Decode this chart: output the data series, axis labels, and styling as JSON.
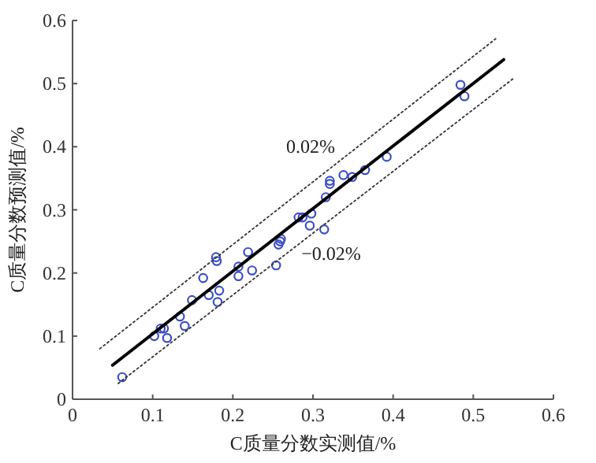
{
  "chart_data": {
    "type": "scatter",
    "xlabel": "C质量分数实测值/%",
    "ylabel": "C质量分数预测值/%",
    "xlim": [
      0,
      0.6
    ],
    "ylim": [
      0,
      0.6
    ],
    "xticks": [
      0,
      0.1,
      0.2,
      0.3,
      0.4,
      0.5,
      0.6
    ],
    "yticks": [
      0,
      0.1,
      0.2,
      0.3,
      0.4,
      0.5,
      0.6
    ],
    "grid": false,
    "series": [
      {
        "type": "scatter",
        "color": "#3c4fc4",
        "marker": "circle",
        "x": [
          0.062,
          0.102,
          0.11,
          0.114,
          0.118,
          0.134,
          0.14,
          0.149,
          0.163,
          0.17,
          0.179,
          0.18,
          0.183,
          0.181,
          0.207,
          0.207,
          0.219,
          0.224,
          0.254,
          0.257,
          0.259,
          0.26,
          0.282,
          0.287,
          0.296,
          0.298,
          0.314,
          0.316,
          0.321,
          0.321,
          0.338,
          0.349,
          0.365,
          0.392,
          0.484,
          0.489
        ],
        "values": [
          0.035,
          0.1,
          0.112,
          0.112,
          0.097,
          0.131,
          0.116,
          0.157,
          0.192,
          0.165,
          0.225,
          0.219,
          0.172,
          0.154,
          0.21,
          0.195,
          0.233,
          0.204,
          0.212,
          0.245,
          0.25,
          0.254,
          0.288,
          0.288,
          0.275,
          0.294,
          0.269,
          0.32,
          0.341,
          0.346,
          0.355,
          0.352,
          0.363,
          0.384,
          0.498,
          0.48
        ]
      },
      {
        "type": "line",
        "color": "#000000",
        "line_style": "solid",
        "marker": "none",
        "x": [
          0.05,
          0.538
        ],
        "values": [
          0.054,
          0.538
        ]
      },
      {
        "type": "line",
        "color": "#333333",
        "line_style": "dotted",
        "marker": "none",
        "x": [
          0.034,
          0.528
        ],
        "values": [
          0.08,
          0.571
        ]
      },
      {
        "type": "line",
        "color": "#333333",
        "line_style": "dotted",
        "marker": "none",
        "x": [
          0.057,
          0.551
        ],
        "values": [
          0.025,
          0.509
        ]
      }
    ],
    "annotations": [
      "0.02%",
      "−0.02%"
    ]
  }
}
